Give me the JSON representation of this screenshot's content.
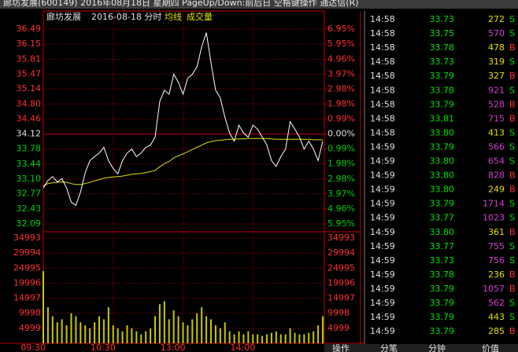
{
  "window_title": "廊坊发展(600149) 2016年08月18日 星期四 PageUp/Down:前后日 空格键操作 通达信(R)",
  "chart_data": {
    "type": "line",
    "title": "廊坊发展",
    "subtitle": "2016-08-18 分时",
    "xlim": [
      0,
      240
    ],
    "xticks": [
      {
        "value": 0,
        "label": "09:30"
      },
      {
        "value": 60,
        "label": "10:30"
      },
      {
        "value": 120,
        "label": "13:00"
      },
      {
        "value": 180,
        "label": "14:00"
      }
    ],
    "x": [
      0,
      4,
      8,
      12,
      16,
      20,
      24,
      28,
      32,
      36,
      40,
      44,
      48,
      52,
      56,
      60,
      64,
      68,
      72,
      76,
      80,
      84,
      88,
      92,
      96,
      100,
      104,
      108,
      112,
      116,
      120,
      124,
      128,
      132,
      136,
      140,
      144,
      148,
      152,
      156,
      160,
      164,
      168,
      172,
      176,
      180,
      184,
      188,
      192,
      196,
      200,
      204,
      208,
      212,
      216,
      220,
      224,
      228,
      232,
      236,
      240
    ],
    "ylim": [
      32.09,
      36.49
    ],
    "yticks": [
      36.49,
      36.15,
      35.81,
      35.47,
      35.14,
      {
        "value": 34.8,
        "label": "34.80"
      },
      34.46,
      34.12,
      33.78,
      33.44,
      {
        "value": 33.1,
        "label": "33.10"
      },
      32.77,
      32.43,
      32.09
    ],
    "y2lim": [
      -5.95,
      6.95
    ],
    "y2ticks": [
      {
        "value": 6.95,
        "label": "6.95%"
      },
      {
        "value": 5.95,
        "label": "5.95%"
      },
      {
        "value": 4.96,
        "label": "4.96%"
      },
      {
        "value": 3.97,
        "label": "3.97%"
      },
      {
        "value": 2.98,
        "label": "2.98%"
      },
      {
        "value": 1.98,
        "label": "1.98%"
      },
      {
        "value": 0.99,
        "label": "0.99%"
      },
      {
        "value": 0,
        "label": "0.00%"
      },
      {
        "value": -0.99,
        "label": "0.99%"
      },
      {
        "value": -1.98,
        "label": "1.98%"
      },
      {
        "value": -2.98,
        "label": "2.98%"
      },
      {
        "value": -3.97,
        "label": "3.97%"
      },
      {
        "value": -4.96,
        "label": "4.96%"
      },
      {
        "value": -5.95,
        "label": "5.95%"
      }
    ],
    "grid": true,
    "series": [
      {
        "color": "#ffffff",
        "values": [
          32.9,
          33.07,
          33.16,
          33.04,
          33.11,
          32.9,
          32.58,
          32.51,
          32.81,
          33.25,
          33.52,
          33.61,
          33.69,
          33.82,
          33.52,
          33.34,
          33.22,
          33.52,
          33.69,
          33.78,
          33.61,
          33.69,
          33.82,
          33.87,
          34.05,
          34.85,
          35.11,
          35.02,
          35.47,
          35.29,
          35.02,
          35.38,
          35.47,
          35.64,
          36.09,
          36.41,
          35.73,
          35.11,
          34.94,
          34.49,
          34.14,
          33.96,
          34.32,
          34.14,
          34.05,
          34.32,
          34.23,
          34.05,
          33.87,
          33.52,
          33.39,
          33.61,
          33.78,
          34.4,
          34.23,
          34.05,
          33.78,
          33.96,
          33.78,
          33.52,
          33.96
        ]
      },
      {
        "name": "均线",
        "color": "#e0e000",
        "values": [
          32.95,
          33.0,
          33.02,
          33.03,
          33.04,
          33.03,
          33.0,
          32.98,
          32.98,
          33.0,
          33.03,
          33.06,
          33.09,
          33.12,
          33.14,
          33.15,
          33.16,
          33.17,
          33.19,
          33.21,
          33.22,
          33.23,
          33.25,
          33.27,
          33.3,
          33.38,
          33.45,
          33.5,
          33.58,
          33.63,
          33.67,
          33.72,
          33.77,
          33.82,
          33.87,
          33.92,
          33.95,
          33.97,
          33.98,
          33.99,
          34.0,
          34.0,
          34.01,
          34.01,
          34.02,
          34.02,
          34.02,
          34.02,
          34.02,
          34.01,
          34.0,
          34.0,
          34.0,
          34.0,
          34.0,
          34.0,
          34.0,
          34.0,
          33.99,
          33.99,
          33.99
        ]
      }
    ],
    "volume": {
      "name": "成交量",
      "color": "#c8c800",
      "ylim": [
        0,
        34993
      ],
      "yticks": [
        34993,
        29994,
        24995,
        19996,
        14997,
        9998,
        4999
      ],
      "values": [
        24000,
        12000,
        9000,
        7000,
        8000,
        6000,
        10000,
        9000,
        7000,
        6000,
        5000,
        7000,
        9000,
        8000,
        12000,
        6000,
        5000,
        4000,
        6000,
        5000,
        4000,
        3000,
        4000,
        5000,
        9000,
        13000,
        14000,
        8000,
        11000,
        9000,
        7000,
        6000,
        8000,
        10000,
        12000,
        9000,
        8000,
        6000,
        5000,
        7000,
        4000,
        3000,
        4000,
        3000,
        4000,
        3000,
        3000,
        2500,
        3000,
        3500,
        4000,
        3000,
        3000,
        5000,
        3500,
        3000,
        3000,
        3500,
        4000,
        6000,
        9000
      ]
    }
  },
  "trade_list": {
    "rows": [
      [
        "14:58",
        "33.73",
        "272",
        "S"
      ],
      [
        "14:58",
        "33.75",
        "570",
        "S"
      ],
      [
        "14:58",
        "33.78",
        "478",
        "B"
      ],
      [
        "14:58",
        "33.73",
        "319",
        "S"
      ],
      [
        "14:58",
        "33.79",
        "327",
        "B"
      ],
      [
        "14:58",
        "33.78",
        "921",
        "S"
      ],
      [
        "14:58",
        "33.79",
        "528",
        "B"
      ],
      [
        "14:58",
        "33.81",
        "715",
        "B"
      ],
      [
        "14:58",
        "33.80",
        "413",
        "S"
      ],
      [
        "14:59",
        "33.79",
        "566",
        "S"
      ],
      [
        "14:59",
        "33.80",
        "654",
        "S"
      ],
      [
        "14:59",
        "33.80",
        "828",
        "B"
      ],
      [
        "14:59",
        "33.80",
        "249",
        "B"
      ],
      [
        "14:59",
        "33.79",
        "1714",
        "S"
      ],
      [
        "14:59",
        "33.77",
        "1023",
        "S"
      ],
      [
        "14:59",
        "33.80",
        "361",
        "B"
      ],
      [
        "14:59",
        "33.77",
        "755",
        "S"
      ],
      [
        "14:59",
        "33.73",
        "756",
        "S"
      ],
      [
        "14:59",
        "33.78",
        "236",
        "B"
      ],
      [
        "14:59",
        "33.79",
        "1057",
        "B"
      ],
      [
        "14:59",
        "33.79",
        "562",
        "S"
      ],
      [
        "14:59",
        "33.79",
        "443",
        "S"
      ],
      [
        "14:59",
        "33.79",
        "285",
        "B"
      ]
    ]
  },
  "tabs": [
    "操作",
    "分笔",
    "分钟",
    "价值"
  ]
}
